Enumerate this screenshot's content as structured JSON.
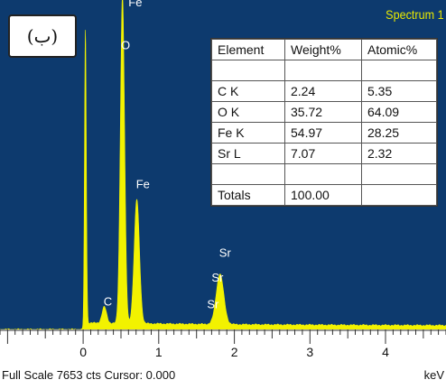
{
  "panel_label": "(ب)",
  "spectrum_name": "Spectrum 1",
  "footer": "Full Scale 7653 cts Cursor: 0.000",
  "x_unit": "keV",
  "table": {
    "headers": [
      "Element",
      "Weight%",
      "Atomic%"
    ],
    "rows": [
      [
        "",
        "",
        ""
      ],
      [
        "C K",
        "2.24",
        "5.35"
      ],
      [
        "O K",
        "35.72",
        "64.09"
      ],
      [
        "Fe K",
        "54.97",
        "28.25"
      ],
      [
        "Sr L",
        "7.07",
        "2.32"
      ],
      [
        "",
        "",
        ""
      ],
      [
        "Totals",
        "100.00",
        ""
      ]
    ]
  },
  "chart_data": {
    "type": "area",
    "title": "Spectrum 1",
    "xlabel": "keV",
    "ylabel": "",
    "xlim": [
      -1.1,
      4.8
    ],
    "ylim": [
      0,
      7653
    ],
    "x_ticks": [
      0,
      1,
      2,
      3,
      4
    ],
    "colors": {
      "background": "#0d3a6e",
      "spectrum": "#f2f200",
      "labels": "#ffffff"
    },
    "peaks": [
      {
        "label": "",
        "x": 0.03,
        "y": 7000,
        "width": 0.012
      },
      {
        "label": "C",
        "x": 0.28,
        "y": 380,
        "width": 0.03
      },
      {
        "label": "O",
        "x": 0.52,
        "y": 7653,
        "width": 0.028
      },
      {
        "label": "Fe",
        "x": 0.71,
        "y": 2900,
        "width": 0.035
      },
      {
        "label": "Sr",
        "x": 1.81,
        "y": 1180,
        "width": 0.05
      }
    ],
    "annotations": [
      {
        "text": "Fe",
        "x": 0.6,
        "y": 7550
      },
      {
        "text": "O",
        "x": 0.5,
        "y": 6550
      },
      {
        "text": "Fe",
        "x": 0.7,
        "y": 3300
      },
      {
        "text": "C",
        "x": 0.27,
        "y": 560
      },
      {
        "text": "Sr",
        "x": 1.8,
        "y": 1700
      },
      {
        "text": "Sr",
        "x": 1.7,
        "y": 1120
      },
      {
        "text": "Sr",
        "x": 1.64,
        "y": 500
      }
    ]
  }
}
